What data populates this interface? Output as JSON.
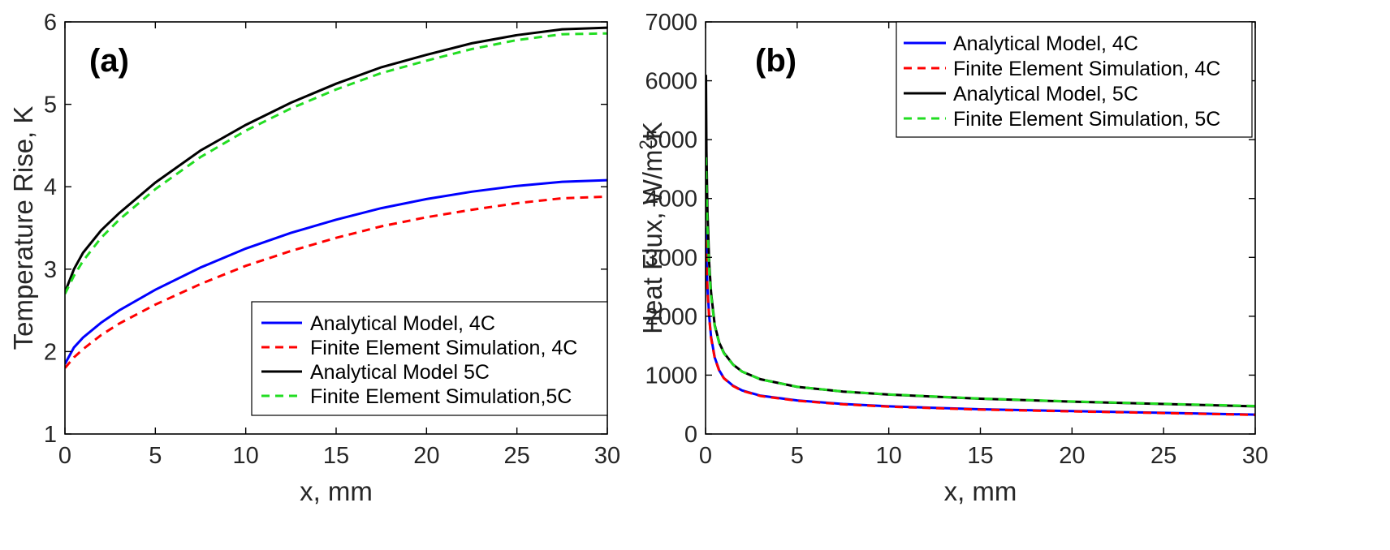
{
  "chart_data": [
    {
      "type": "line",
      "panel_label": "(a)",
      "xlabel": "x, mm",
      "ylabel": "Temperature Rise, K",
      "xlim": [
        0,
        30
      ],
      "ylim": [
        1,
        6
      ],
      "xticks": [
        0,
        5,
        10,
        15,
        20,
        25,
        30
      ],
      "yticks": [
        1,
        2,
        3,
        4,
        5,
        6
      ],
      "legend_position": "bottom-right",
      "series": [
        {
          "name": "Analytical Model, 4C",
          "color": "#0000ff",
          "dash": "solid",
          "x": [
            0,
            0.5,
            1,
            2,
            3,
            5,
            7.5,
            10,
            12.5,
            15,
            17.5,
            20,
            22.5,
            25,
            27.5,
            30
          ],
          "y": [
            1.85,
            2.05,
            2.17,
            2.35,
            2.5,
            2.75,
            3.02,
            3.25,
            3.44,
            3.6,
            3.74,
            3.85,
            3.94,
            4.01,
            4.06,
            4.08
          ]
        },
        {
          "name": "Finite Element Simulation, 4C",
          "color": "#ff0000",
          "dash": "dashed",
          "x": [
            0,
            0.5,
            1,
            2,
            3,
            5,
            7.5,
            10,
            12.5,
            15,
            17.5,
            20,
            22.5,
            25,
            27.5,
            30
          ],
          "y": [
            1.8,
            1.93,
            2.03,
            2.2,
            2.34,
            2.57,
            2.82,
            3.04,
            3.22,
            3.38,
            3.52,
            3.63,
            3.72,
            3.8,
            3.86,
            3.88
          ]
        },
        {
          "name": "Analytical Model 5C",
          "color": "#000000",
          "dash": "solid",
          "x": [
            0,
            0.5,
            1,
            2,
            3,
            5,
            7.5,
            10,
            12.5,
            15,
            17.5,
            20,
            22.5,
            25,
            27.5,
            30
          ],
          "y": [
            2.72,
            3.0,
            3.2,
            3.47,
            3.68,
            4.05,
            4.44,
            4.75,
            5.02,
            5.25,
            5.45,
            5.6,
            5.74,
            5.84,
            5.91,
            5.93
          ]
        },
        {
          "name": "Finite Element Simulation,5C",
          "color": "#22dd22",
          "dash": "dashed",
          "x": [
            0,
            0.5,
            1,
            2,
            3,
            5,
            7.5,
            10,
            12.5,
            15,
            17.5,
            20,
            22.5,
            25,
            27.5,
            30
          ],
          "y": [
            2.7,
            2.92,
            3.1,
            3.38,
            3.6,
            3.97,
            4.36,
            4.68,
            4.95,
            5.18,
            5.38,
            5.53,
            5.67,
            5.78,
            5.85,
            5.86
          ]
        }
      ]
    },
    {
      "type": "line",
      "panel_label": "(b)",
      "xlabel": "x, mm",
      "ylabel": "Heat Flux, W/m",
      "ylabel_sup": "2",
      "ylabel_suffix": "K",
      "xlim": [
        0,
        30
      ],
      "ylim": [
        0,
        7000
      ],
      "xticks": [
        0,
        5,
        10,
        15,
        20,
        25,
        30
      ],
      "yticks": [
        0,
        1000,
        2000,
        3000,
        4000,
        5000,
        6000,
        7000
      ],
      "legend_position": "top-right",
      "series": [
        {
          "name": "Analytical Model, 4C",
          "color": "#0000ff",
          "dash": "solid",
          "x": [
            0.02,
            0.05,
            0.1,
            0.2,
            0.3,
            0.5,
            0.75,
            1,
            1.5,
            2,
            3,
            5,
            7.5,
            10,
            15,
            20,
            25,
            30
          ],
          "y": [
            3500,
            3000,
            2500,
            2000,
            1650,
            1300,
            1080,
            950,
            820,
            740,
            650,
            570,
            510,
            470,
            420,
            390,
            360,
            330
          ]
        },
        {
          "name": "Finite Element Simulation, 4C",
          "color": "#ff0000",
          "dash": "dashed",
          "x": [
            0.02,
            0.05,
            0.1,
            0.2,
            0.3,
            0.5,
            0.75,
            1,
            1.5,
            2,
            3,
            5,
            7.5,
            10,
            15,
            20,
            25,
            30
          ],
          "y": [
            3300,
            2900,
            2450,
            1970,
            1630,
            1290,
            1070,
            945,
            815,
            735,
            645,
            565,
            505,
            465,
            415,
            385,
            355,
            325
          ]
        },
        {
          "name": "Analytical Model, 5C",
          "color": "#000000",
          "dash": "solid",
          "x": [
            0.02,
            0.05,
            0.1,
            0.2,
            0.3,
            0.5,
            0.75,
            1,
            1.5,
            2,
            3,
            5,
            7.5,
            10,
            15,
            20,
            25,
            30
          ],
          "y": [
            6100,
            4800,
            3800,
            2900,
            2400,
            1850,
            1550,
            1380,
            1180,
            1060,
            930,
            800,
            720,
            670,
            600,
            550,
            510,
            470
          ]
        },
        {
          "name": "Finite Element Simulation, 5C",
          "color": "#22dd22",
          "dash": "dashed",
          "x": [
            0.02,
            0.05,
            0.1,
            0.2,
            0.3,
            0.5,
            0.75,
            1,
            1.5,
            2,
            3,
            5,
            7.5,
            10,
            15,
            20,
            25,
            30
          ],
          "y": [
            4700,
            4200,
            3500,
            2800,
            2350,
            1830,
            1540,
            1370,
            1175,
            1058,
            928,
            802,
            722,
            672,
            602,
            552,
            512,
            475
          ]
        }
      ]
    }
  ]
}
